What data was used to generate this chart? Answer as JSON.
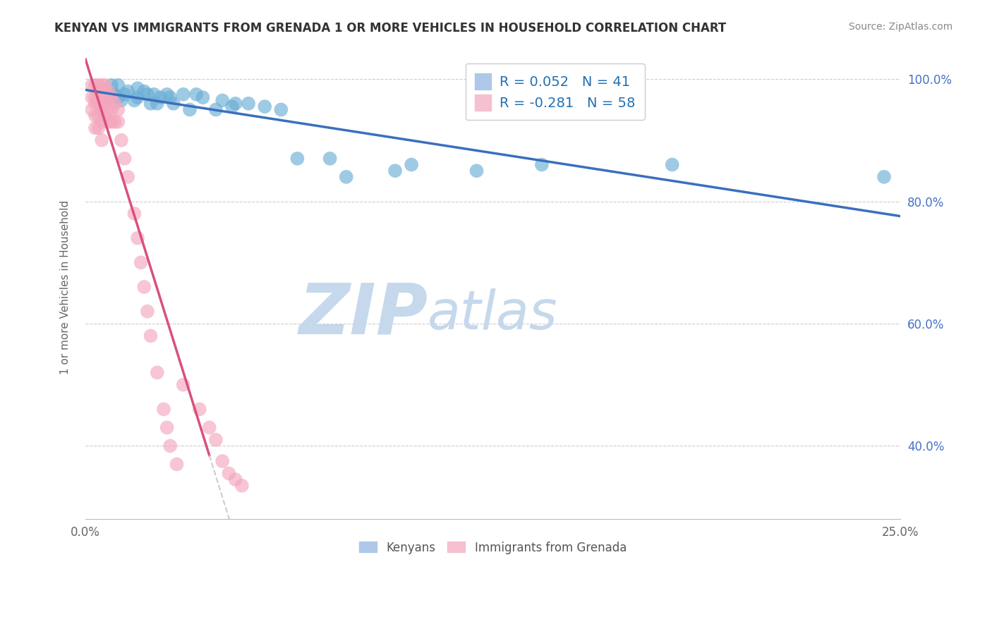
{
  "title": "KENYAN VS IMMIGRANTS FROM GRENADA 1 OR MORE VEHICLES IN HOUSEHOLD CORRELATION CHART",
  "source_text": "Source: ZipAtlas.com",
  "ylabel": "1 or more Vehicles in Household",
  "x_min": 0.0,
  "x_max": 0.25,
  "y_min": 0.28,
  "y_max": 1.04,
  "x_ticks": [
    0.0,
    0.05,
    0.1,
    0.15,
    0.2,
    0.25
  ],
  "x_tick_labels": [
    "0.0%",
    "",
    "",
    "",
    "",
    "25.0%"
  ],
  "y_ticks": [
    0.4,
    0.6,
    0.8,
    1.0
  ],
  "y_tick_labels": [
    "40.0%",
    "60.0%",
    "80.0%",
    "100.0%"
  ],
  "blue_R": 0.052,
  "blue_N": 41,
  "pink_R": -0.281,
  "pink_N": 58,
  "blue_color": "#6baed6",
  "pink_color": "#f4a6bc",
  "blue_line_color": "#3a6fbd",
  "pink_line_color": "#d94f7e",
  "pink_dash_color": "#cccccc",
  "watermark_ZIP": "ZIP",
  "watermark_atlas": "atlas",
  "watermark_color_ZIP": "#c5d8ec",
  "watermark_color_atlas": "#c5d8ec",
  "legend_label_blue": "Kenyans",
  "legend_label_pink": "Immigrants from Grenada",
  "blue_scatter_x": [
    0.005,
    0.007,
    0.008,
    0.009,
    0.01,
    0.01,
    0.011,
    0.012,
    0.013,
    0.015,
    0.016,
    0.016,
    0.018,
    0.019,
    0.02,
    0.021,
    0.022,
    0.023,
    0.025,
    0.026,
    0.027,
    0.03,
    0.032,
    0.034,
    0.036,
    0.04,
    0.042,
    0.045,
    0.046,
    0.05,
    0.055,
    0.06,
    0.065,
    0.075,
    0.08,
    0.095,
    0.1,
    0.12,
    0.14,
    0.18,
    0.245
  ],
  "blue_scatter_y": [
    0.975,
    0.97,
    0.99,
    0.975,
    0.99,
    0.97,
    0.965,
    0.975,
    0.98,
    0.965,
    0.985,
    0.97,
    0.98,
    0.975,
    0.96,
    0.975,
    0.96,
    0.97,
    0.975,
    0.97,
    0.96,
    0.975,
    0.95,
    0.975,
    0.97,
    0.95,
    0.965,
    0.955,
    0.96,
    0.96,
    0.955,
    0.95,
    0.87,
    0.87,
    0.84,
    0.85,
    0.86,
    0.85,
    0.86,
    0.86,
    0.84
  ],
  "pink_scatter_x": [
    0.002,
    0.002,
    0.002,
    0.003,
    0.003,
    0.003,
    0.003,
    0.003,
    0.004,
    0.004,
    0.004,
    0.004,
    0.004,
    0.004,
    0.005,
    0.005,
    0.005,
    0.005,
    0.005,
    0.005,
    0.005,
    0.006,
    0.006,
    0.006,
    0.006,
    0.007,
    0.007,
    0.007,
    0.007,
    0.008,
    0.008,
    0.008,
    0.009,
    0.009,
    0.01,
    0.01,
    0.011,
    0.012,
    0.013,
    0.015,
    0.016,
    0.017,
    0.018,
    0.019,
    0.02,
    0.022,
    0.024,
    0.025,
    0.026,
    0.028,
    0.03,
    0.035,
    0.038,
    0.04,
    0.042,
    0.044,
    0.046,
    0.048
  ],
  "pink_scatter_y": [
    0.99,
    0.97,
    0.95,
    0.99,
    0.97,
    0.96,
    0.94,
    0.92,
    0.99,
    0.98,
    0.97,
    0.96,
    0.94,
    0.92,
    0.99,
    0.98,
    0.97,
    0.96,
    0.95,
    0.93,
    0.9,
    0.99,
    0.98,
    0.96,
    0.94,
    0.98,
    0.97,
    0.95,
    0.93,
    0.97,
    0.95,
    0.93,
    0.96,
    0.93,
    0.95,
    0.93,
    0.9,
    0.87,
    0.84,
    0.78,
    0.74,
    0.7,
    0.66,
    0.62,
    0.58,
    0.52,
    0.46,
    0.43,
    0.4,
    0.37,
    0.5,
    0.46,
    0.43,
    0.41,
    0.375,
    0.355,
    0.345,
    0.335
  ],
  "pink_line_x_start": 0.0,
  "pink_line_x_solid_end": 0.038,
  "pink_line_x_end": 0.25,
  "background_color": "#ffffff",
  "grid_color": "#cccccc"
}
